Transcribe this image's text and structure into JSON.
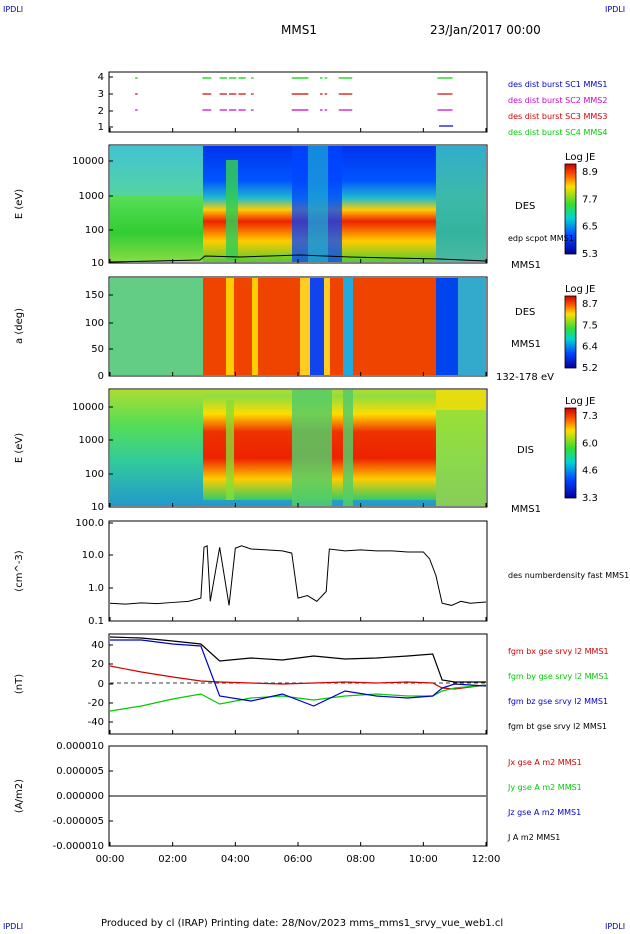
{
  "header": {
    "corner_left": "IPDLI",
    "corner_right": "IPDLI",
    "title": "MMS1",
    "date": "23/Jan/2017 00:00"
  },
  "footer": {
    "text": "Produced by cl (IRAP)   Printing date: 28/Nov/2023   mms_mms1_srvy_vue_web1.cl",
    "corner_left": "IPDLI",
    "corner_right": "IPDLI"
  },
  "x_axis": {
    "ticks": [
      "00:00",
      "02:00",
      "04:00",
      "06:00",
      "08:00",
      "10:00",
      "12:00"
    ]
  },
  "colors": {
    "red": "#d40000",
    "green": "#00cc00",
    "blue": "#0000cc",
    "magenta": "#cc00cc",
    "black": "#000000"
  },
  "chart_data": [
    {
      "type": "scatter",
      "panel": "burst",
      "yticks": [
        "4",
        "3",
        "2",
        "1"
      ],
      "legend": [
        {
          "name": "des dist burst SC1 MMS1",
          "color": "#0000cc"
        },
        {
          "name": "des dist burst SC2 MMS2",
          "color": "#cc00cc"
        },
        {
          "name": "des dist burst SC3 MMS3",
          "color": "#d40000"
        },
        {
          "name": "des dist burst SC4 MMS4",
          "color": "#00cc00"
        }
      ],
      "intervals_hours": [
        [
          0.8,
          0.85
        ],
        [
          2.95,
          3.2
        ],
        [
          3.5,
          3.7
        ],
        [
          3.8,
          4.0
        ],
        [
          4.1,
          4.3
        ],
        [
          4.5,
          4.55
        ],
        [
          5.8,
          6.3
        ],
        [
          6.7,
          6.75
        ],
        [
          6.85,
          6.9
        ],
        [
          7.3,
          7.7
        ],
        [
          10.45,
          10.9
        ]
      ],
      "mms1_interval_hours": [
        10.5,
        10.95
      ]
    },
    {
      "type": "heatmap",
      "panel": "des_energy",
      "ylabel": "E (eV)",
      "yticks": [
        "10000",
        "1000",
        "100",
        "10"
      ],
      "label": "DES",
      "sublabel": "MMS1",
      "overlay": "edp scpot MMS1",
      "colorbar": {
        "title": "Log JE",
        "ticks": [
          "8.9",
          "7.7",
          "6.5",
          "5.3"
        ]
      }
    },
    {
      "type": "heatmap",
      "panel": "des_pitch",
      "ylabel": "a (deg)",
      "yticks": [
        "150",
        "100",
        "50",
        "0"
      ],
      "label": "DES",
      "sublabel": "MMS1",
      "energy_range": "132-178 eV",
      "colorbar": {
        "title": "Log JE",
        "ticks": [
          "8.7",
          "7.5",
          "6.4",
          "5.2"
        ]
      }
    },
    {
      "type": "heatmap",
      "panel": "dis_energy",
      "ylabel": "E (eV)",
      "yticks": [
        "10000",
        "1000",
        "100",
        "10"
      ],
      "label": "DIS",
      "sublabel": "MMS1",
      "colorbar": {
        "title": "Log JE",
        "ticks": [
          "7.3",
          "6.0",
          "4.6",
          "3.3"
        ]
      }
    },
    {
      "type": "line",
      "panel": "density",
      "ylabel": "(cm^-3)",
      "yticks": [
        "100.0",
        "10.0",
        "1.0",
        "0.1"
      ],
      "ylim": [
        0.1,
        100
      ],
      "log": true,
      "series": [
        {
          "name": "des numberdensity fast MMS1",
          "x": [
            0,
            0.5,
            1,
            1.5,
            2,
            2.5,
            2.9,
            3.0,
            3.1,
            3.2,
            3.5,
            3.8,
            4.0,
            4.2,
            4.5,
            5,
            5.5,
            5.8,
            6.0,
            6.3,
            6.6,
            6.9,
            7.0,
            7.5,
            8,
            8.5,
            9,
            9.5,
            10,
            10.2,
            10.4,
            10.6,
            10.9,
            11.2,
            11.5,
            12
          ],
          "y": [
            0.35,
            0.33,
            0.36,
            0.34,
            0.37,
            0.4,
            0.5,
            18,
            20,
            0.4,
            18,
            0.3,
            17,
            20,
            16,
            15,
            14,
            12,
            0.5,
            0.6,
            0.4,
            0.8,
            16,
            14,
            15,
            14,
            14,
            13,
            13,
            8,
            2.5,
            0.35,
            0.3,
            0.4,
            0.35,
            0.38
          ]
        }
      ]
    },
    {
      "type": "line",
      "panel": "fgm",
      "ylabel": "(nT)",
      "yticks": [
        "40",
        "20",
        "0",
        "-20",
        "-40"
      ],
      "ylim": [
        -48,
        50
      ],
      "series": [
        {
          "name": "fgm bx gse srvy l2 MMS1",
          "color": "#d40000",
          "x": [
            0,
            1,
            2,
            2.9,
            3.5,
            4.5,
            5.5,
            6.5,
            7.5,
            8.5,
            9.5,
            10.3,
            10.6,
            11,
            12
          ],
          "y": [
            20,
            14,
            9,
            5,
            4,
            3,
            2,
            3,
            4,
            3,
            4,
            3,
            -2,
            -3,
            1
          ]
        },
        {
          "name": "fgm by gse srvy l2 MMS1",
          "color": "#00cc00",
          "x": [
            0,
            1,
            2,
            2.9,
            3.5,
            4.5,
            5.5,
            6.5,
            7.5,
            8.5,
            9.5,
            10.3,
            10.6,
            11,
            12
          ],
          "y": [
            -25,
            -20,
            -13,
            -8,
            -18,
            -12,
            -10,
            -14,
            -10,
            -8,
            -10,
            -10,
            -5,
            -2,
            1
          ]
        },
        {
          "name": "fgm bz gse srvy l2 MMS1",
          "color": "#0000cc",
          "x": [
            0,
            1,
            2,
            2.9,
            3.5,
            4.5,
            5.5,
            6.5,
            7.5,
            8.5,
            9.5,
            10.3,
            10.6,
            11,
            12
          ],
          "y": [
            46,
            46,
            42,
            40,
            -10,
            -15,
            -8,
            -20,
            -5,
            -10,
            -12,
            -10,
            -2,
            2,
            0
          ]
        },
        {
          "name": "fgm bt gse srvy l2 MMS1",
          "color": "#000000",
          "x": [
            0,
            1,
            2,
            2.9,
            3.5,
            4.5,
            5.5,
            6.5,
            7.5,
            8.5,
            9.5,
            10.3,
            10.6,
            11,
            12
          ],
          "y": [
            49,
            48,
            45,
            42,
            25,
            28,
            26,
            30,
            27,
            28,
            30,
            32,
            6,
            4,
            4
          ]
        }
      ]
    },
    {
      "type": "line",
      "panel": "current",
      "ylabel": "(A/m2)",
      "yticks": [
        "0.000010",
        "0.000005",
        "0.000000",
        "-0.000005",
        "-0.000010"
      ],
      "ylim": [
        -1e-05,
        1e-05
      ],
      "series": [
        {
          "name": "Jx gse A m2 MMS1",
          "color": "#d40000"
        },
        {
          "name": "Jy gse A m2 MMS1",
          "color": "#00cc00"
        },
        {
          "name": "Jz gse A m2 MMS1",
          "color": "#0000cc"
        },
        {
          "name": "J A m2 MMS1",
          "color": "#000000"
        }
      ]
    }
  ]
}
